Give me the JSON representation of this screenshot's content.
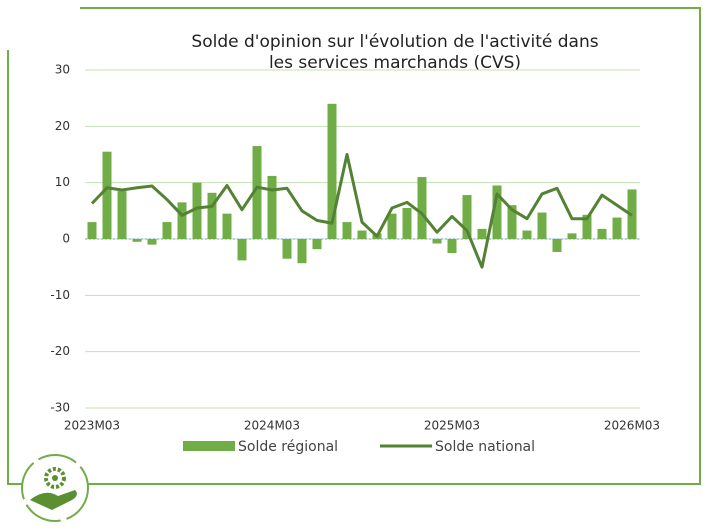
{
  "chart_data": {
    "type": "bar_line",
    "title": [
      "Solde d'opinion sur l'évolution de l'activité dans",
      "les services marchands (CVS)"
    ],
    "categories": [
      "2023M03",
      null,
      null,
      null,
      null,
      null,
      null,
      null,
      null,
      null,
      null,
      null,
      "2024M03",
      null,
      null,
      null,
      null,
      null,
      null,
      null,
      null,
      null,
      null,
      null,
      "2025M03",
      null,
      null,
      null,
      null,
      null,
      null,
      null,
      null,
      null,
      null,
      null,
      "2026M03"
    ],
    "series": [
      {
        "name": "Solde régional",
        "type": "bar",
        "color": "#70ad47",
        "values": [
          3,
          15.5,
          8.5,
          -0.5,
          -1,
          3,
          6.5,
          10,
          8.2,
          4.5,
          -3.8,
          16.5,
          11.2,
          -3.5,
          -4.3,
          -1.8,
          24,
          3,
          1.5,
          1,
          4.5,
          5.5,
          11,
          -0.8,
          -2.5,
          7.8,
          1.8,
          9.5,
          6,
          1.5,
          4.7,
          -2.3,
          1,
          4.3,
          1.8,
          3.8,
          8.8
        ]
      },
      {
        "name": "Solde national",
        "type": "line",
        "color": "#548235",
        "values": [
          6.3,
          9.1,
          8.7,
          9.1,
          9.4,
          7,
          4.2,
          5.5,
          5.8,
          9.5,
          5.2,
          9.2,
          8.7,
          9,
          5,
          3.3,
          2.8,
          15,
          3,
          0.5,
          5.5,
          6.5,
          4.5,
          1.2,
          4,
          1.5,
          -5,
          8,
          5.2,
          3.6,
          8,
          9,
          3.6,
          3.6,
          7.8,
          6,
          4.2
        ]
      }
    ],
    "ylim": [
      -30,
      30
    ],
    "yticks": [
      -30,
      -20,
      -10,
      0,
      10,
      20,
      30
    ],
    "grid": true,
    "legend": "bottom"
  }
}
